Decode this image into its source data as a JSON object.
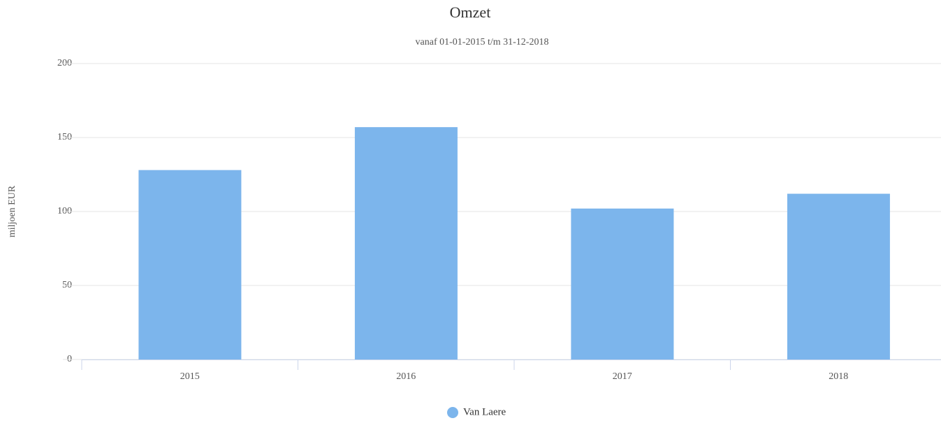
{
  "chart_data": {
    "type": "bar",
    "title": "Omzet",
    "subtitle": "vanaf 01-01-2015 t/m 31-12-2018",
    "y_label": "miljoen EUR",
    "categories": [
      "2015",
      "2016",
      "2017",
      "2018"
    ],
    "series": [
      {
        "name": "Van Laere",
        "color": "#7cb5ec",
        "values": [
          128,
          157,
          102,
          112
        ]
      }
    ],
    "ylim": [
      0,
      200
    ],
    "yticks": [
      0,
      50,
      100,
      150,
      200
    ],
    "grid": true,
    "legend": "bottom"
  }
}
